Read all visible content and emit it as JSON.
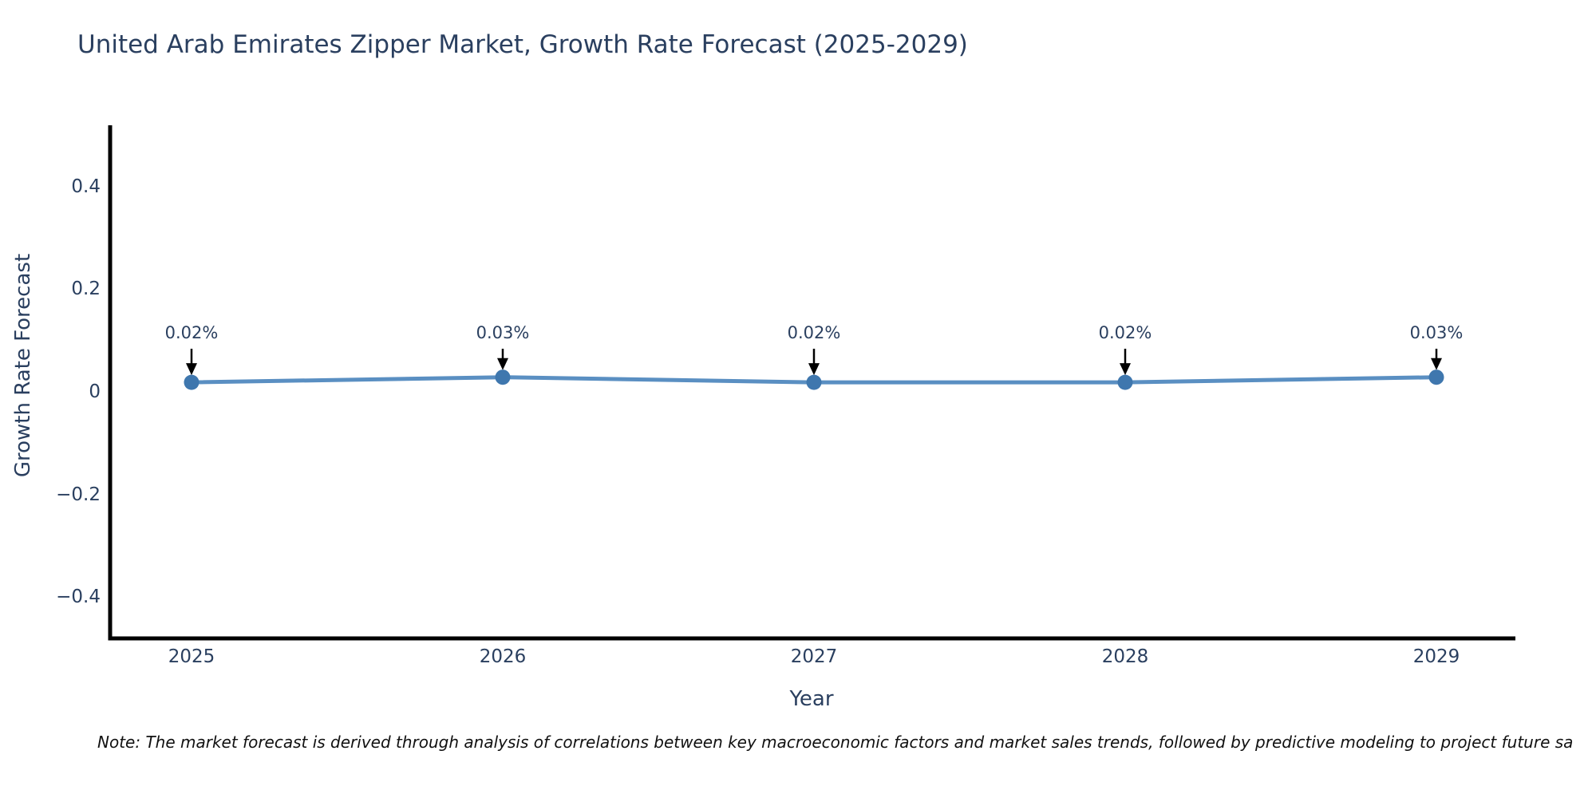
{
  "note": {
    "text": "Note: The market forecast is derived through analysis of correlations between key macroeconomic factors and market sales trends, followed by predictive modeling to project future sa"
  },
  "colors": {
    "line": "#5a8fc2",
    "marker": "#3f77ae",
    "axis": "#000000",
    "text": "#2a3f5f",
    "annotation_arrow": "#000000",
    "background": "#ffffff"
  },
  "chart_data": {
    "type": "line",
    "title": "United Arab Emirates Zipper Market, Growth Rate Forecast (2025-2029)",
    "xlabel": "Year",
    "ylabel": "Growth Rate Forecast",
    "x": [
      2025,
      2026,
      2027,
      2028,
      2029
    ],
    "values": [
      0.02,
      0.03,
      0.02,
      0.02,
      0.03
    ],
    "point_annotations": [
      "0.02%",
      "0.03%",
      "0.02%",
      "0.02%",
      "0.03%"
    ],
    "xtick_labels": [
      "2025",
      "2026",
      "2027",
      "2028",
      "2029"
    ],
    "yticks": [
      0.4,
      0.2,
      0,
      -0.2,
      -0.4
    ],
    "ytick_labels": [
      "0.4",
      "0.2",
      "0",
      "−0.2",
      "−0.4"
    ],
    "ylim": [
      -0.5,
      0.52
    ],
    "grid": false,
    "legend": "none",
    "marker_style": "circle",
    "annotation_arrowhead": "down"
  }
}
